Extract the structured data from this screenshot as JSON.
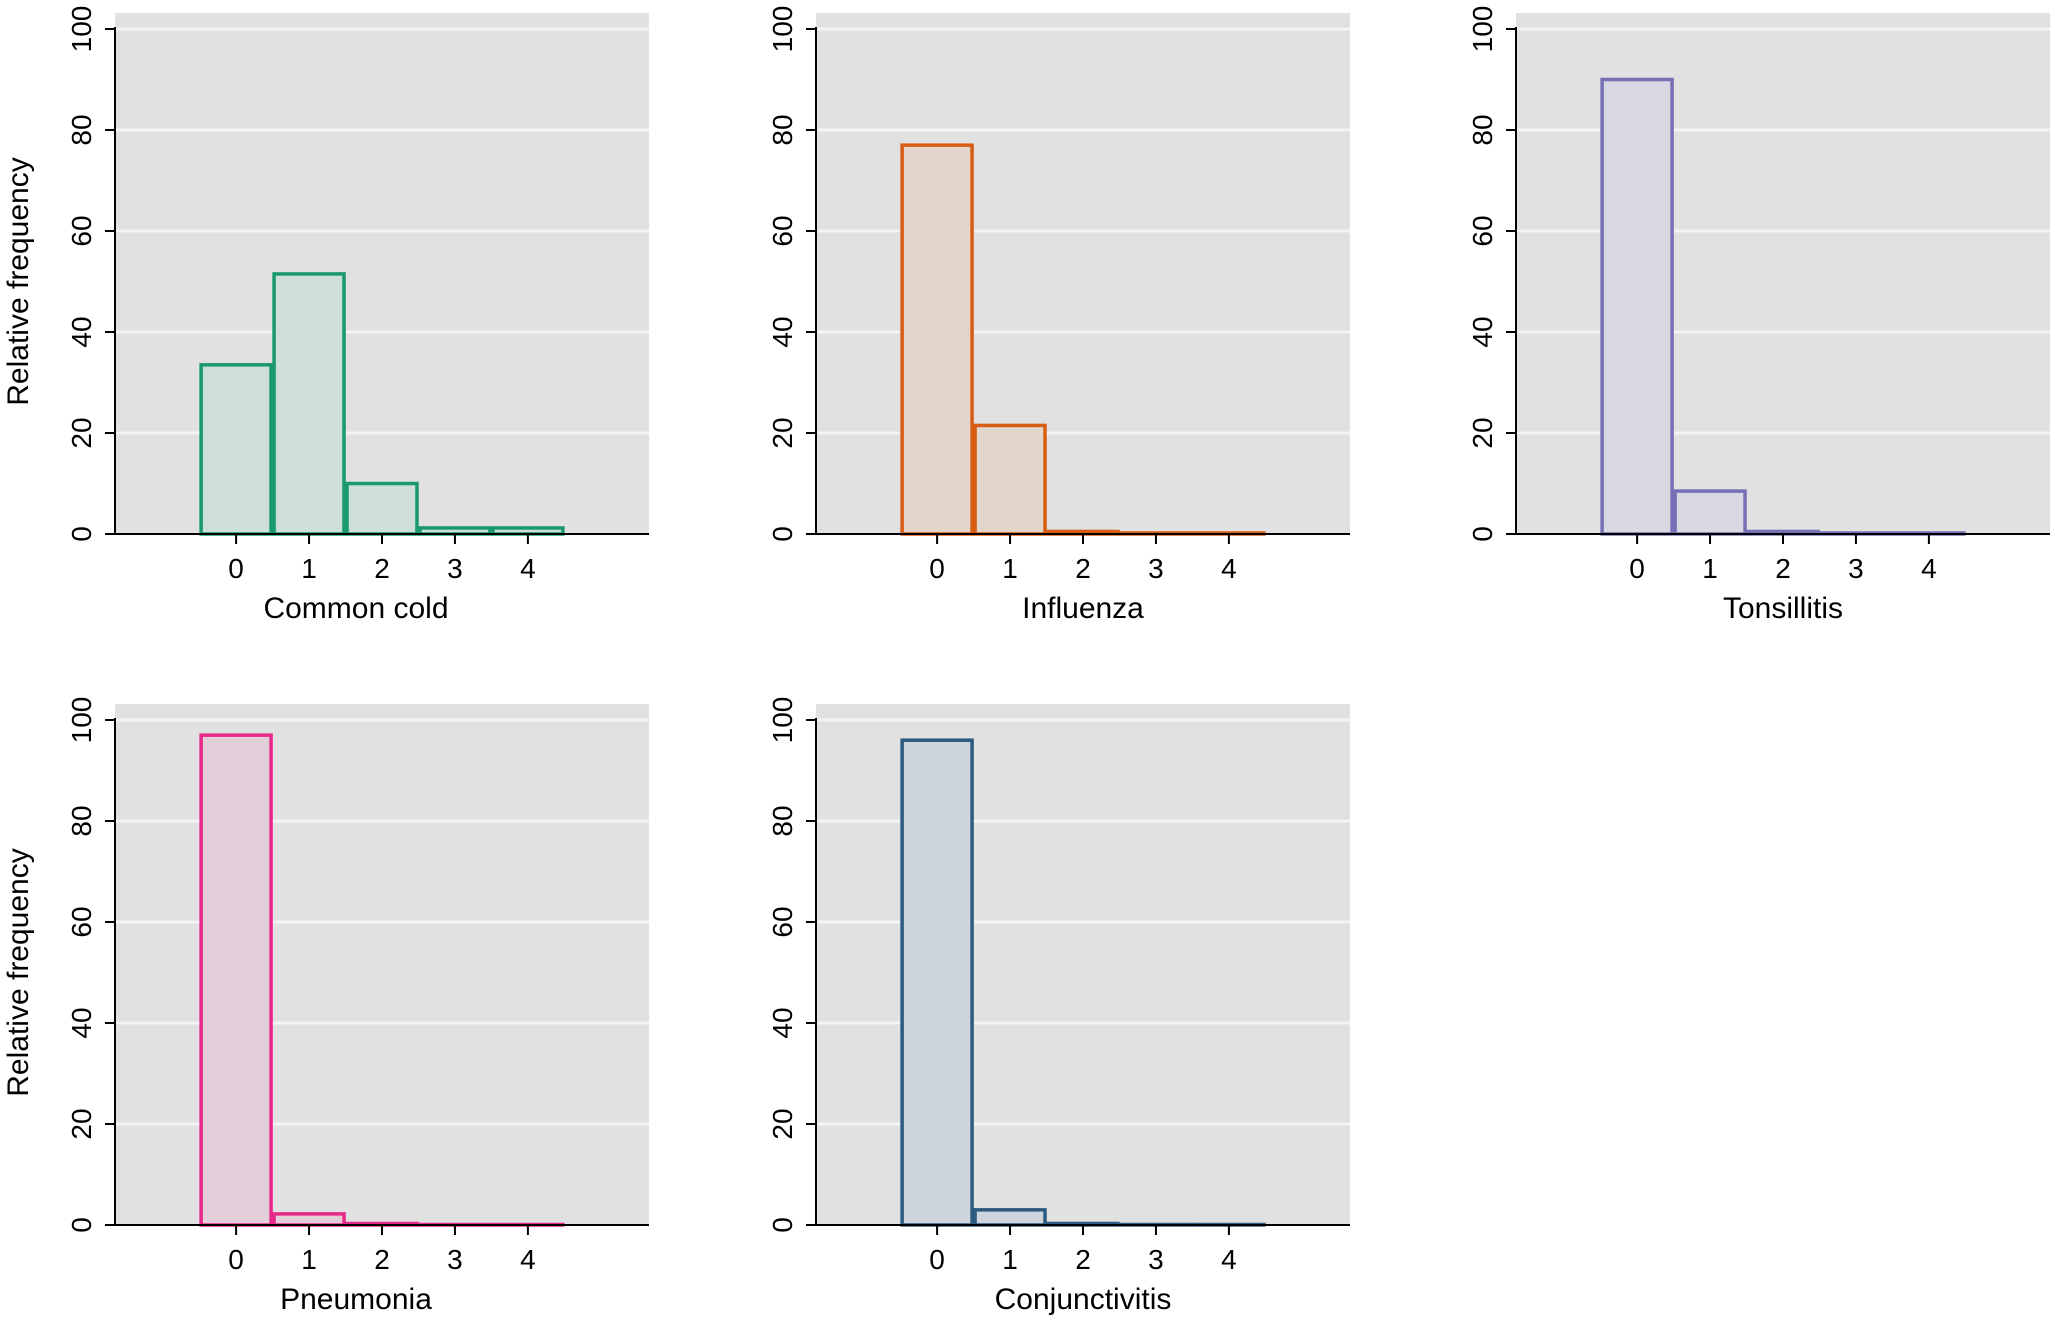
{
  "y_axis_label": "Relative frequency",
  "chart_data": [
    {
      "type": "bar",
      "xlabel": "Common cold",
      "ylabel": "Relative frequency",
      "categories": [
        "0",
        "1",
        "2",
        "3",
        "4"
      ],
      "values": [
        33.5,
        51.5,
        10,
        1.2,
        1.2
      ],
      "ylim": [
        0,
        100
      ],
      "yticks": [
        0,
        20,
        40,
        60,
        80,
        100
      ],
      "grid": true,
      "color": "#1a9870",
      "fill": "#cddfd6"
    },
    {
      "type": "bar",
      "xlabel": "Influenza",
      "ylabel": "",
      "categories": [
        "0",
        "1",
        "2",
        "3",
        "4"
      ],
      "values": [
        77,
        21.5,
        0.5,
        0.2,
        0.2
      ],
      "ylim": [
        0,
        100
      ],
      "yticks": [
        0,
        20,
        40,
        60,
        80,
        100
      ],
      "grid": true,
      "color": "#d75d12",
      "fill": "#e2d5ca"
    },
    {
      "type": "bar",
      "xlabel": "Tonsillitis",
      "ylabel": "",
      "categories": [
        "0",
        "1",
        "2",
        "3",
        "4"
      ],
      "values": [
        90,
        8.5,
        0.5,
        0.2,
        0.2
      ],
      "ylim": [
        0,
        100
      ],
      "yticks": [
        0,
        20,
        40,
        60,
        80,
        100
      ],
      "grid": true,
      "color": "#7570b3",
      "fill": "#d9d8e2"
    },
    {
      "type": "bar",
      "xlabel": "Pneumonia",
      "ylabel": "Relative frequency",
      "categories": [
        "0",
        "1",
        "2",
        "3",
        "4"
      ],
      "values": [
        97,
        2.2,
        0.3,
        0.1,
        0.1
      ],
      "ylim": [
        0,
        100
      ],
      "yticks": [
        0,
        20,
        40,
        60,
        80,
        100
      ],
      "grid": true,
      "color": "#e7298a",
      "fill": "#e3cfd9"
    },
    {
      "type": "bar",
      "xlabel": "Conjunctivitis",
      "ylabel": "",
      "categories": [
        "0",
        "1",
        "2",
        "3",
        "4"
      ],
      "values": [
        96,
        3,
        0.3,
        0.1,
        0.1
      ],
      "ylim": [
        0,
        100
      ],
      "yticks": [
        0,
        20,
        40,
        60,
        80,
        100
      ],
      "grid": true,
      "color": "#2c5a80",
      "fill": "#cfd5dc"
    }
  ]
}
